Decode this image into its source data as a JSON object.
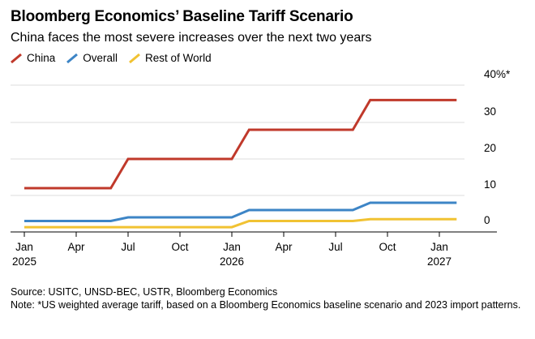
{
  "header": {
    "title": "Bloomberg Economics’ Baseline Tariff Scenario",
    "subtitle": "China faces the most severe increases over the next two years"
  },
  "legend": [
    {
      "label": "China",
      "color": "#c0392b"
    },
    {
      "label": "Overall",
      "color": "#3d85c6"
    },
    {
      "label": "Rest of World",
      "color": "#f1c232"
    }
  ],
  "chart_data": {
    "type": "line",
    "ylim": [
      0,
      40
    ],
    "y_ticks": [
      0,
      10,
      20,
      30,
      40
    ],
    "y_tick_labels": [
      "0",
      "10",
      "20",
      "30",
      "40%*"
    ],
    "x_tick_labels": [
      {
        "month": "Jan",
        "year": "2025"
      },
      {
        "month": "Apr",
        "year": ""
      },
      {
        "month": "Jul",
        "year": ""
      },
      {
        "month": "Oct",
        "year": ""
      },
      {
        "month": "Jan",
        "year": "2026"
      },
      {
        "month": "Apr",
        "year": ""
      },
      {
        "month": "Jul",
        "year": ""
      },
      {
        "month": "Oct",
        "year": ""
      },
      {
        "month": "Jan",
        "year": "2027"
      }
    ],
    "x_tick_dates": [
      "2025-01",
      "2025-04",
      "2025-07",
      "2025-10",
      "2026-01",
      "2026-04",
      "2026-07",
      "2026-10",
      "2027-01"
    ],
    "series": [
      {
        "name": "China",
        "color": "#c0392b",
        "points": [
          [
            "2025-01",
            12
          ],
          [
            "2025-06",
            12
          ],
          [
            "2025-07",
            20
          ],
          [
            "2026-01",
            20
          ],
          [
            "2026-02",
            28
          ],
          [
            "2026-08",
            28
          ],
          [
            "2026-09",
            36
          ],
          [
            "2027-02",
            36
          ]
        ]
      },
      {
        "name": "Overall",
        "color": "#3d85c6",
        "points": [
          [
            "2025-01",
            3
          ],
          [
            "2025-06",
            3
          ],
          [
            "2025-07",
            4
          ],
          [
            "2026-01",
            4
          ],
          [
            "2026-02",
            6
          ],
          [
            "2026-08",
            6
          ],
          [
            "2026-09",
            8
          ],
          [
            "2027-02",
            8
          ]
        ]
      },
      {
        "name": "Rest of World",
        "color": "#f1c232",
        "points": [
          [
            "2025-01",
            1.3
          ],
          [
            "2026-01",
            1.3
          ],
          [
            "2026-02",
            3
          ],
          [
            "2026-08",
            3
          ],
          [
            "2026-09",
            3.5
          ],
          [
            "2027-02",
            3.5
          ]
        ]
      }
    ]
  },
  "footer": {
    "source": "Source: USITC, UNSD-BEC, USTR, Bloomberg Economics",
    "note": "Note: *US weighted average tariff, based on a Bloomberg Economics baseline scenario and 2023 import patterns."
  }
}
